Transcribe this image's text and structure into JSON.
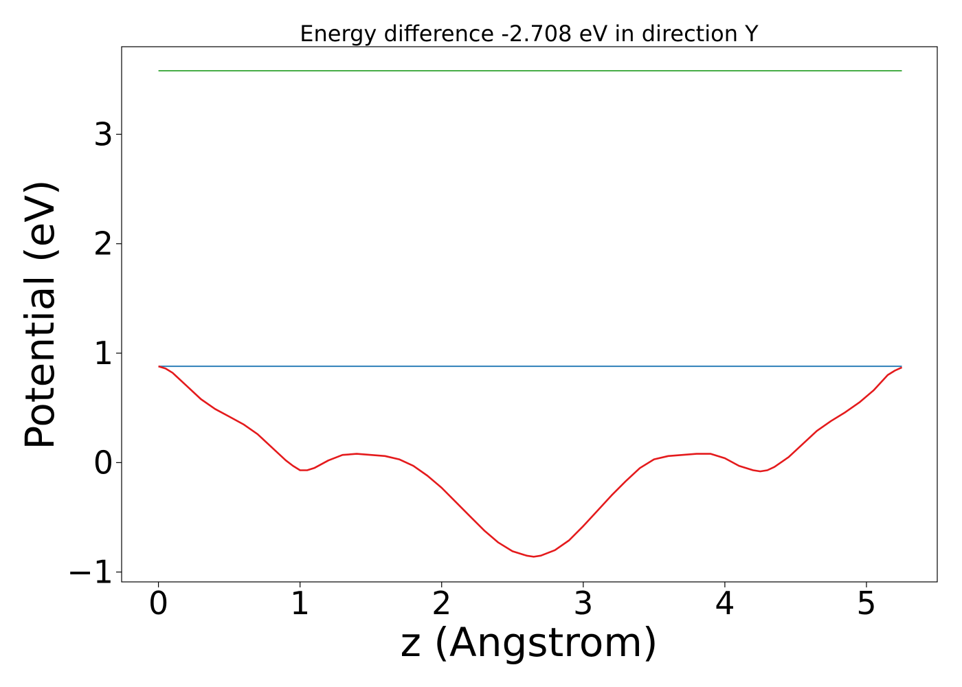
{
  "chart_data": {
    "type": "line",
    "title": "Energy difference -2.708 eV in direction Y",
    "xlabel": "z (Angstrom)",
    "ylabel": "Potential (eV)",
    "xlim": [
      -0.26,
      5.5
    ],
    "ylim": [
      -1.09,
      3.8
    ],
    "xticks": [
      0,
      1,
      2,
      3,
      4,
      5
    ],
    "xtick_labels": [
      "0",
      "1",
      "2",
      "3",
      "4",
      "5"
    ],
    "yticks": [
      -1,
      0,
      1,
      2,
      3
    ],
    "ytick_labels": [
      "−1",
      "0",
      "1",
      "2",
      "3"
    ],
    "grid": false,
    "series": [
      {
        "color": "#1f77b4",
        "x": [
          0,
          5.25
        ],
        "y": [
          0.88,
          0.88
        ]
      },
      {
        "color": "#2ca02c",
        "x": [
          0,
          5.25
        ],
        "y": [
          3.58,
          3.58
        ]
      },
      {
        "color": "#e41a1c",
        "x": [
          0,
          0.05,
          0.1,
          0.2,
          0.3,
          0.4,
          0.5,
          0.6,
          0.7,
          0.8,
          0.9,
          0.95,
          1.0,
          1.05,
          1.1,
          1.2,
          1.3,
          1.4,
          1.5,
          1.6,
          1.7,
          1.8,
          1.9,
          2.0,
          2.1,
          2.2,
          2.3,
          2.4,
          2.5,
          2.6,
          2.65,
          2.7,
          2.8,
          2.9,
          3.0,
          3.1,
          3.2,
          3.3,
          3.4,
          3.5,
          3.6,
          3.7,
          3.8,
          3.9,
          4.0,
          4.1,
          4.2,
          4.25,
          4.3,
          4.35,
          4.45,
          4.55,
          4.65,
          4.75,
          4.85,
          4.95,
          5.05,
          5.15,
          5.2,
          5.25
        ],
        "y": [
          0.88,
          0.86,
          0.82,
          0.7,
          0.58,
          0.49,
          0.42,
          0.35,
          0.26,
          0.14,
          0.02,
          -0.03,
          -0.07,
          -0.07,
          -0.05,
          0.02,
          0.07,
          0.08,
          0.07,
          0.06,
          0.03,
          -0.03,
          -0.12,
          -0.23,
          -0.36,
          -0.49,
          -0.62,
          -0.73,
          -0.81,
          -0.85,
          -0.86,
          -0.85,
          -0.8,
          -0.71,
          -0.58,
          -0.44,
          -0.3,
          -0.17,
          -0.05,
          0.03,
          0.06,
          0.07,
          0.08,
          0.08,
          0.04,
          -0.03,
          -0.07,
          -0.08,
          -0.07,
          -0.04,
          0.05,
          0.17,
          0.29,
          0.38,
          0.46,
          0.55,
          0.66,
          0.8,
          0.84,
          0.87
        ]
      }
    ]
  }
}
